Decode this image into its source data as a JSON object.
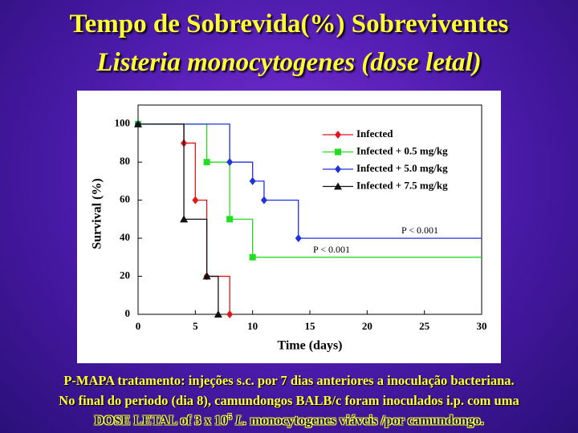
{
  "slide": {
    "title": "Tempo de Sobrevida(%) Sobreviventes",
    "subtitle": "Listeria monocytogenes (dose letal)",
    "footer": [
      "P-MAPA tratamento:  injeções s.c. por 7 dias anteriores a inoculação bacteriana.",
      "No final do periodo (dia 8), camundongos BALB/c foram inoculados i.p.  com uma"
    ],
    "footer_last": [
      "DOSE LETAL  of  3 x 10",
      "5",
      "L.",
      "monocytogenes viáveis /por camundongo."
    ]
  },
  "chart_data": {
    "type": "step",
    "x_label": "Time (days)",
    "y_label": "Survival (%)",
    "xlim": [
      0,
      30
    ],
    "xticks": [
      0,
      5,
      10,
      15,
      20,
      25,
      30
    ],
    "ylim": [
      0,
      110
    ],
    "yticks": [
      0,
      20,
      40,
      60,
      80,
      100
    ],
    "legend": "upper right",
    "series": [
      {
        "name": "Infected",
        "color": "#e01818",
        "marker": "diamond",
        "x": [
          0,
          4,
          5,
          6,
          8
        ],
        "values": [
          100,
          90,
          60,
          20,
          0
        ]
      },
      {
        "name": "Infected + 0.5 mg/kg",
        "color": "#22dd22",
        "marker": "square",
        "x": [
          0,
          6,
          8,
          10,
          30
        ],
        "values": [
          100,
          80,
          50,
          30,
          30
        ]
      },
      {
        "name": "Infected + 5.0 mg/kg",
        "color": "#2233dd",
        "marker": "diamond",
        "x": [
          0,
          8,
          10,
          11,
          14,
          30
        ],
        "values": [
          100,
          80,
          70,
          60,
          40,
          40
        ]
      },
      {
        "name": "Infected + 7.5 mg/kg",
        "color": "#111111",
        "marker": "triangle",
        "x": [
          0,
          4,
          6,
          7
        ],
        "values": [
          100,
          50,
          20,
          0
        ]
      }
    ],
    "annotations": [
      "P < 0.001",
      "P < 0.001"
    ]
  }
}
